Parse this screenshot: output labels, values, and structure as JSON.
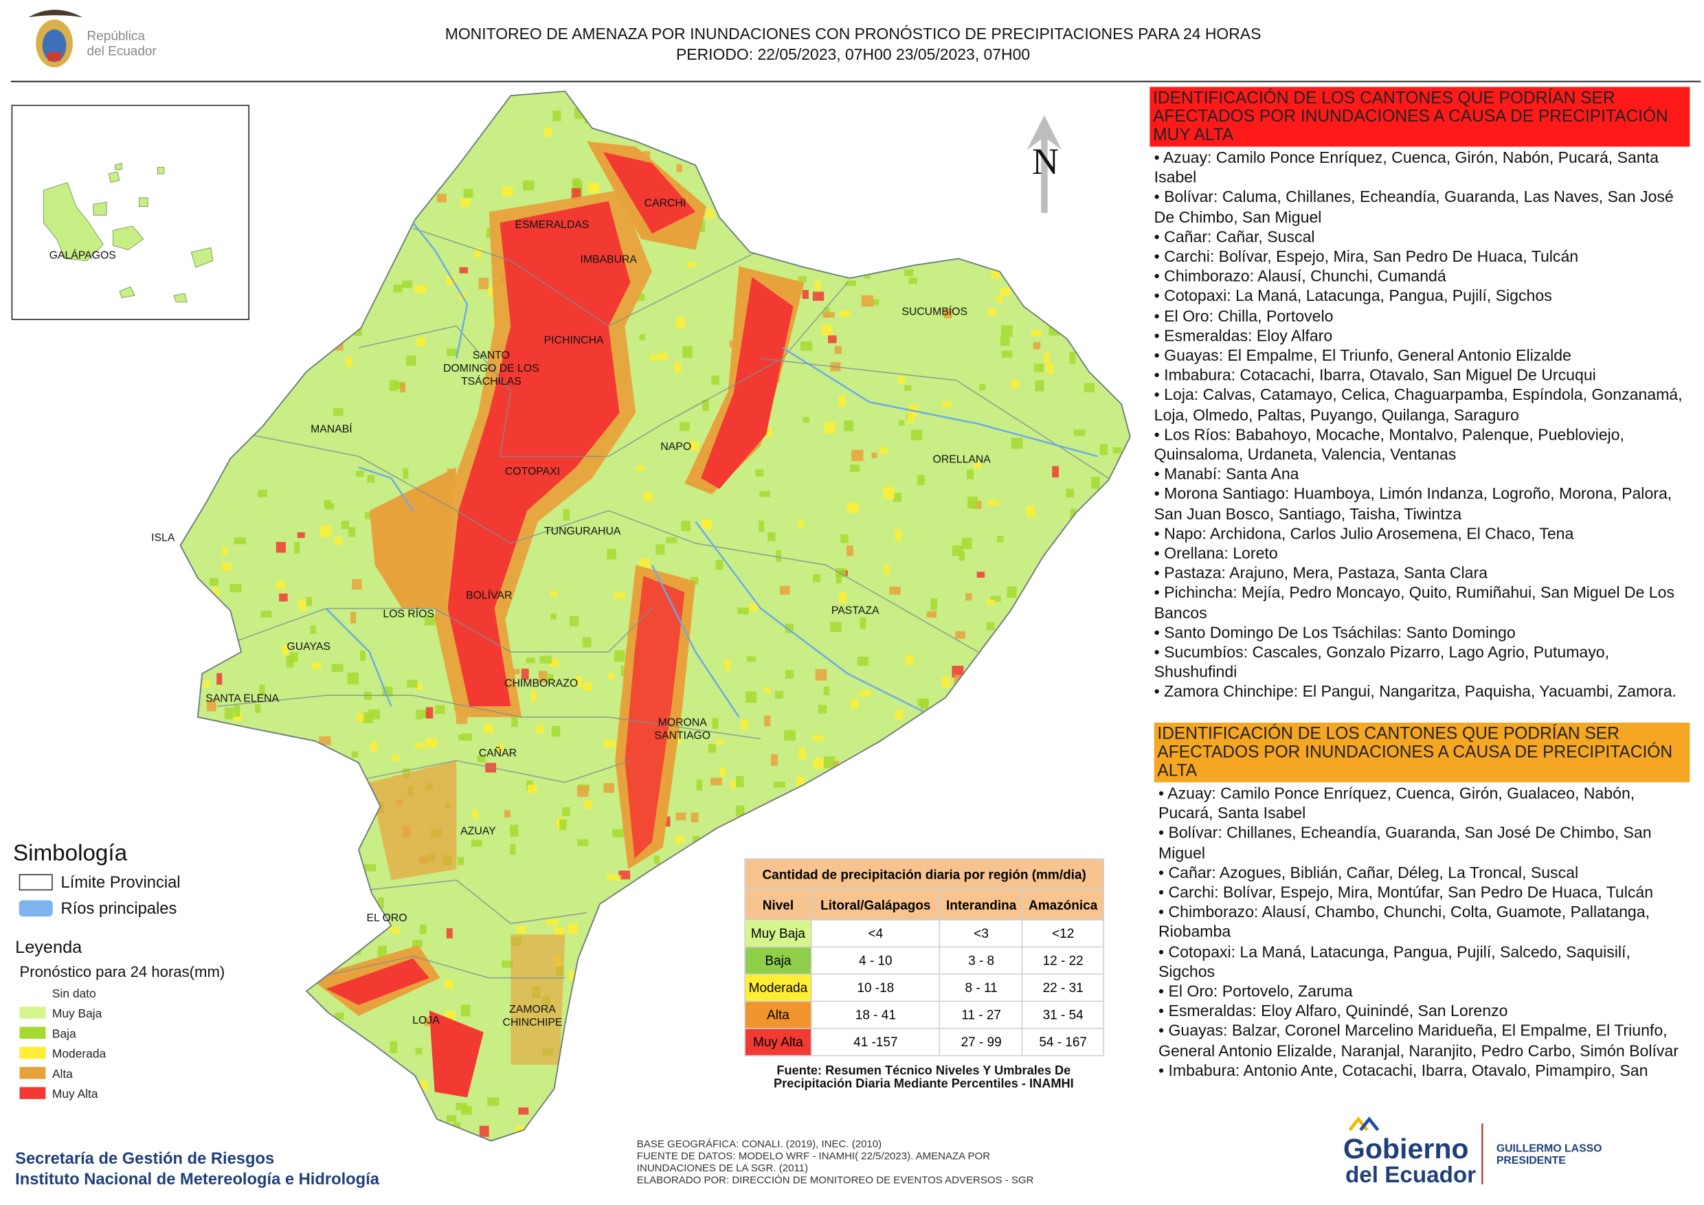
{
  "header": {
    "logo_text": [
      "República",
      "del Ecuador"
    ],
    "title": "MONITOREO DE AMENAZA POR INUNDACIONES  CON PRONÓSTICO DE  PRECIPITACIONES PARA 24 HORAS",
    "period": "PERIODO: 22/05/2023, 07H00 23/05/2023, 07H00"
  },
  "inset": {
    "label": "GALÁPAGOS"
  },
  "map": {
    "north": "N",
    "provinces": [
      [
        "ESMERALDAS"
      ],
      [
        "CARCHI"
      ],
      [
        "IMBABURA"
      ],
      [
        "SUCUMBÍOS"
      ],
      [
        "PICHINCHA"
      ],
      [
        "SANTO",
        "DOMINGO DE LOS",
        "TSÁCHILAS"
      ],
      [
        "MANABÍ"
      ],
      [
        "NAPO"
      ],
      [
        "ORELLANA"
      ],
      [
        "COTOPAXI"
      ],
      [
        "TUNGURAHUA"
      ],
      [
        "ISLA"
      ],
      [
        "BOLÍVAR"
      ],
      [
        "LOS RÍOS"
      ],
      [
        "PASTAZA"
      ],
      [
        "GUAYAS"
      ],
      [
        "CHIMBORAZO"
      ],
      [
        "SANTA ELENA"
      ],
      [
        "MORONA",
        "SANTIAGO"
      ],
      [
        "CAÑAR"
      ],
      [
        "AZUAY"
      ],
      [
        "EL ORO"
      ],
      [
        "ZAMORA",
        "CHINCHIPE"
      ],
      [
        "LOJA"
      ]
    ]
  },
  "symbology": {
    "title": "Simbología",
    "items": [
      {
        "label": "Límite Provincial",
        "color": "#ffffff"
      },
      {
        "label": "Ríos principales",
        "color": "#7fb3f0"
      }
    ]
  },
  "legend": {
    "title": "Leyenda",
    "subtitle": "Pronóstico para 24 horas(mm)",
    "items": [
      {
        "label": "Sin dato",
        "color": "#ffffff"
      },
      {
        "label": "Muy Baja",
        "color": "#d6f58c"
      },
      {
        "label": "Baja",
        "color": "#a6d930"
      },
      {
        "label": "Moderada",
        "color": "#ffee33"
      },
      {
        "label": "Alta",
        "color": "#e8a23c"
      },
      {
        "label": "Muy Alta",
        "color": "#f23a32"
      }
    ]
  },
  "table": {
    "title": "Cantidad de precipitación diaria por región (mm/dia)",
    "columns": [
      "Nivel",
      "Litoral/Galápagos",
      "Interandina",
      "Amazónica"
    ],
    "rows": [
      [
        "Muy Baja",
        "<4",
        "<3",
        "<12"
      ],
      [
        "Baja",
        "4 - 10",
        "3 - 8",
        "12 - 22"
      ],
      [
        "Moderada",
        "10 -18",
        "8 - 11",
        "22 - 31"
      ],
      [
        "Alta",
        "18 - 41",
        "11 - 27",
        "31 - 54"
      ],
      [
        "Muy Alta",
        "41 -157",
        "27 - 99",
        "54 - 167"
      ]
    ],
    "row_colors": [
      "#d6f58c",
      "#8fcf4a",
      "#ffee33",
      "#f0952e",
      "#f23a32"
    ],
    "source": "Fuente: Resumen Técnico Niveles Y Umbrales De Precipitación Diaria Mediante Percentiles - INAMHI"
  },
  "panel": {
    "very_high": {
      "heading": "IDENTIFICACIÓN DE LOS CANTONES QUE PODRÍAN SER AFECTADOS POR INUNDACIONES  A CAUSA DE PRECIPITACIÓN MUY ALTA",
      "color": "#ff1a1a",
      "items": [
        "• Azuay: Camilo Ponce Enríquez, Cuenca, Girón, Nabón, Pucará, Santa Isabel",
        "• Bolívar: Caluma, Chillanes, Echeandía, Guaranda, Las Naves, San José De Chimbo, San Miguel",
        "• Cañar: Cañar, Suscal",
        "• Carchi: Bolívar, Espejo, Mira, San Pedro De Huaca, Tulcán",
        "• Chimborazo: Alausí, Chunchi, Cumandá",
        "• Cotopaxi: La Maná, Latacunga, Pangua, Pujilí, Sigchos",
        "• El Oro: Chilla, Portovelo",
        "• Esmeraldas: Eloy Alfaro",
        "• Guayas: El Empalme, El Triunfo, General Antonio Elizalde",
        "• Imbabura: Cotacachi, Ibarra, Otavalo, San Miguel De Urcuqui",
        "• Loja: Calvas, Catamayo, Celica, Chaguarpamba, Espíndola, Gonzanamá, Loja, Olmedo, Paltas, Puyango, Quilanga, Saraguro",
        "• Los Ríos: Babahoyo, Mocache, Montalvo, Palenque, Puebloviejo, Quinsaloma, Urdaneta, Valencia, Ventanas",
        "• Manabí: Santa Ana",
        "• Morona Santiago: Huamboya, Limón Indanza, Logroño, Morona, Palora, San Juan Bosco, Santiago, Taisha, Tiwintza",
        "• Napo: Archidona, Carlos Julio Arosemena, El Chaco, Tena",
        "• Orellana: Loreto",
        "• Pastaza: Arajuno, Mera, Pastaza, Santa Clara",
        "• Pichincha: Mejía, Pedro Moncayo, Quito, Rumiñahui, San Miguel De Los Bancos",
        "• Santo Domingo De Los Tsáchilas: Santo Domingo",
        "• Sucumbíos: Cascales, Gonzalo Pizarro, Lago Agrio, Putumayo, Shushufindi",
        "• Zamora Chinchipe: El Pangui, Nangaritza, Paquisha, Yacuambi, Zamora."
      ]
    },
    "high": {
      "heading": "IDENTIFICACIÓN DE LOS CANTONES QUE  PODRÍAN SER AFECTADOS POR INUNDACIONES  A CAUSA DE PRECIPITACIÓN ALTA",
      "color": "#f5a623",
      "items": [
        "• Azuay: Camilo Ponce Enríquez, Cuenca, Girón, Gualaceo, Nabón, Pucará, Santa Isabel",
        "• Bolívar: Chillanes, Echeandía, Guaranda, San José De Chimbo, San Miguel",
        "• Cañar: Azogues, Biblián, Cañar, Déleg, La Troncal, Suscal",
        "• Carchi: Bolívar, Espejo, Mira, Montúfar, San Pedro De Huaca, Tulcán",
        "• Chimborazo: Alausí, Chambo, Chunchi, Colta, Guamote, Pallatanga, Riobamba",
        "• Cotopaxi: La Maná, Latacunga, Pangua, Pujilí, Salcedo, Saquisilí, Sigchos",
        "• El Oro: Portovelo, Zaruma",
        "• Esmeraldas: Eloy Alfaro, Quinindé, San Lorenzo",
        "• Guayas: Balzar, Coronel Marcelino Maridueña, El Empalme, El Triunfo, General Antonio Elizalde, Naranjal, Naranjito, Pedro Carbo, Simón Bolívar",
        "• Imbabura: Antonio Ante, Cotacachi, Ibarra, Otavalo, Pimampiro, San"
      ]
    }
  },
  "footer": {
    "institutions": [
      "Secretaría de Gestión de Riesgos",
      "Instituto Nacional de Metereología e Hidrología"
    ],
    "credits": [
      "BASE GEOGRÁFICA: CONALI. (2019), INEC. (2010)",
      "FUENTE DE DATOS: MODELO WRF - INAMHI( 22/5/2023).  AMENAZA POR",
      "INUNDACIONES DE LA SGR. (2011)",
      "ELABORADO POR: DIRECCIÓN DE MONITOREO DE EVENTOS ADVERSOS - SGR"
    ],
    "gov_logo": [
      "Gobierno",
      "del Ecuador"
    ],
    "president": [
      "GUILLERMO LASSO",
      "PRESIDENTE"
    ]
  }
}
